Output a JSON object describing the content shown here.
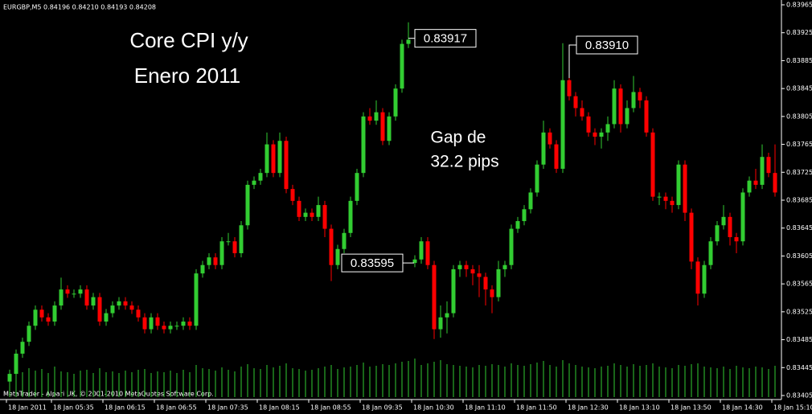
{
  "chart_data": {
    "type": "candlestick",
    "header": "EURGBP,M5  0.84196 0.84210 0.84193 0.84208",
    "footer": "MetaTrader - Alpari UK, © 2001-2010 MetaQuotes Software Corp.",
    "title": "Core CPI y/y",
    "subtitle": "Enero 2011",
    "annotations": [
      "Gap de",
      "32.2 pips"
    ],
    "price_labels": [
      {
        "value": 0.83917,
        "label": "0.83917"
      },
      {
        "value": 0.8391,
        "label": "0.83910"
      },
      {
        "value": 0.83595,
        "label": "0.83595"
      }
    ],
    "up_color": "#32cd32",
    "down_color": "#ff0000",
    "volume_color": "#32cd32",
    "ylim": [
      0.83405,
      0.83965
    ],
    "yticks": [
      0.83965,
      0.83925,
      0.83885,
      0.83845,
      0.83805,
      0.83765,
      0.83725,
      0.83685,
      0.83645,
      0.83605,
      0.83565,
      0.83525,
      0.83485,
      0.83445,
      0.83405
    ],
    "categories": [
      "18 Jan 2011",
      null,
      null,
      null,
      null,
      null,
      null,
      "18 Jan 05:35",
      null,
      null,
      null,
      null,
      null,
      null,
      null,
      "18 Jan 06:15",
      null,
      null,
      null,
      null,
      null,
      null,
      null,
      "18 Jan 06:55",
      null,
      null,
      null,
      null,
      null,
      null,
      null,
      "18 Jan 07:35",
      null,
      null,
      null,
      null,
      null,
      null,
      null,
      "18 Jan 08:15",
      null,
      null,
      null,
      null,
      null,
      null,
      null,
      "18 Jan 08:55",
      null,
      null,
      null,
      null,
      null,
      null,
      null,
      "18 Jan 09:35",
      null,
      null,
      null,
      null,
      null,
      null,
      null,
      "18 Jan 10:30",
      null,
      null,
      null,
      null,
      null,
      null,
      null,
      "18 Jan 11:10",
      null,
      null,
      null,
      null,
      null,
      null,
      null,
      "18 Jan 11:50",
      null,
      null,
      null,
      null,
      null,
      null,
      null,
      "18 Jan 12:30",
      null,
      null,
      null,
      null,
      null,
      null,
      null,
      "18 Jan 13:10",
      null,
      null,
      null,
      null,
      null,
      null,
      null,
      "18 Jan 13:50",
      null,
      null,
      null,
      null,
      null,
      null,
      null,
      "18 Jan 14:30",
      null,
      null,
      null,
      null,
      null,
      null,
      null,
      "18 Jan 15:10"
    ],
    "ohlc": [
      [
        0.83425,
        0.83442,
        0.83418,
        0.83436
      ],
      [
        0.83436,
        0.83471,
        0.8343,
        0.83465
      ],
      [
        0.83465,
        0.83488,
        0.83459,
        0.83482
      ],
      [
        0.83482,
        0.83511,
        0.83476,
        0.83505
      ],
      [
        0.83505,
        0.83534,
        0.83499,
        0.83528
      ],
      [
        0.83528,
        0.83534,
        0.83511,
        0.83517
      ],
      [
        0.83517,
        0.83523,
        0.83505,
        0.83511
      ],
      [
        0.83511,
        0.8354,
        0.83505,
        0.83534
      ],
      [
        0.83534,
        0.83574,
        0.83528,
        0.83557
      ],
      [
        0.83557,
        0.83563,
        0.83545,
        0.83551
      ],
      [
        0.83551,
        0.83557,
        0.83545,
        0.83551
      ],
      [
        0.83551,
        0.83563,
        0.83545,
        0.83557
      ],
      [
        0.83557,
        0.83563,
        0.83528,
        0.83534
      ],
      [
        0.83534,
        0.83552,
        0.83528,
        0.83546
      ],
      [
        0.83546,
        0.83552,
        0.83505,
        0.83511
      ],
      [
        0.83511,
        0.83529,
        0.83505,
        0.83523
      ],
      [
        0.83523,
        0.8354,
        0.83517,
        0.83534
      ],
      [
        0.83534,
        0.83546,
        0.83528,
        0.8354
      ],
      [
        0.8354,
        0.83546,
        0.83528,
        0.83534
      ],
      [
        0.83534,
        0.8354,
        0.83522,
        0.83528
      ],
      [
        0.83528,
        0.83534,
        0.83511,
        0.83517
      ],
      [
        0.83517,
        0.83523,
        0.83494,
        0.835
      ],
      [
        0.835,
        0.83523,
        0.83494,
        0.83517
      ],
      [
        0.83517,
        0.83523,
        0.83499,
        0.83505
      ],
      [
        0.83505,
        0.83511,
        0.83494,
        0.835
      ],
      [
        0.835,
        0.83511,
        0.83494,
        0.83505
      ],
      [
        0.83505,
        0.83511,
        0.83499,
        0.83505
      ],
      [
        0.83505,
        0.83517,
        0.83499,
        0.83511
      ],
      [
        0.83511,
        0.83517,
        0.83499,
        0.83505
      ],
      [
        0.83505,
        0.83586,
        0.83499,
        0.8358
      ],
      [
        0.8358,
        0.83598,
        0.83574,
        0.83592
      ],
      [
        0.83592,
        0.83609,
        0.83586,
        0.83603
      ],
      [
        0.83603,
        0.83609,
        0.83586,
        0.83592
      ],
      [
        0.83592,
        0.83632,
        0.83586,
        0.83626
      ],
      [
        0.83626,
        0.83638,
        0.8362,
        0.83626
      ],
      [
        0.83626,
        0.83632,
        0.83603,
        0.83609
      ],
      [
        0.83609,
        0.83655,
        0.83603,
        0.83649
      ],
      [
        0.83649,
        0.83713,
        0.83643,
        0.83707
      ],
      [
        0.83707,
        0.83719,
        0.83701,
        0.83713
      ],
      [
        0.83713,
        0.8373,
        0.83707,
        0.83724
      ],
      [
        0.83724,
        0.83782,
        0.83718,
        0.83765
      ],
      [
        0.83765,
        0.83771,
        0.83718,
        0.83724
      ],
      [
        0.83724,
        0.83782,
        0.83718,
        0.8377
      ],
      [
        0.8377,
        0.83776,
        0.83695,
        0.83701
      ],
      [
        0.83701,
        0.83707,
        0.83678,
        0.83684
      ],
      [
        0.83684,
        0.8369,
        0.83655,
        0.83661
      ],
      [
        0.83661,
        0.83673,
        0.83655,
        0.83667
      ],
      [
        0.83667,
        0.83673,
        0.83655,
        0.83661
      ],
      [
        0.83661,
        0.8369,
        0.83655,
        0.83678
      ],
      [
        0.83678,
        0.83684,
        0.83632,
        0.83644
      ],
      [
        0.83644,
        0.8365,
        0.83569,
        0.83592
      ],
      [
        0.83592,
        0.83621,
        0.83586,
        0.83615
      ],
      [
        0.83615,
        0.83644,
        0.83609,
        0.83638
      ],
      [
        0.83638,
        0.8369,
        0.83632,
        0.83684
      ],
      [
        0.83684,
        0.8373,
        0.83678,
        0.83724
      ],
      [
        0.83724,
        0.83811,
        0.83718,
        0.83805
      ],
      [
        0.83805,
        0.83817,
        0.83793,
        0.83799
      ],
      [
        0.83799,
        0.83828,
        0.83793,
        0.83811
      ],
      [
        0.83811,
        0.83817,
        0.83764,
        0.8377
      ],
      [
        0.8377,
        0.83811,
        0.83764,
        0.83805
      ],
      [
        0.83805,
        0.83851,
        0.83799,
        0.83845
      ],
      [
        0.83845,
        0.83915,
        0.83839,
        0.83909
      ],
      [
        0.83909,
        0.8394,
        0.83903,
        0.83915
      ],
      [
        0.83595,
        0.83606,
        0.83589,
        0.836
      ],
      [
        0.836,
        0.83632,
        0.83594,
        0.83626
      ],
      [
        0.83626,
        0.83632,
        0.83586,
        0.83592
      ],
      [
        0.83592,
        0.83598,
        0.83486,
        0.835
      ],
      [
        0.835,
        0.83534,
        0.83488,
        0.83517
      ],
      [
        0.83517,
        0.8354,
        0.83494,
        0.83523
      ],
      [
        0.83523,
        0.83592,
        0.83517,
        0.83586
      ],
      [
        0.83586,
        0.83598,
        0.83575,
        0.83592
      ],
      [
        0.83592,
        0.83598,
        0.83575,
        0.83586
      ],
      [
        0.83586,
        0.83592,
        0.83563,
        0.8358
      ],
      [
        0.8358,
        0.83592,
        0.83546,
        0.83575
      ],
      [
        0.83575,
        0.83581,
        0.83534,
        0.83557
      ],
      [
        0.83557,
        0.83563,
        0.83523,
        0.83546
      ],
      [
        0.83546,
        0.83598,
        0.8354,
        0.83586
      ],
      [
        0.83586,
        0.83598,
        0.83575,
        0.83592
      ],
      [
        0.83592,
        0.8365,
        0.83586,
        0.83644
      ],
      [
        0.83644,
        0.83661,
        0.83638,
        0.83655
      ],
      [
        0.83655,
        0.83678,
        0.83649,
        0.83672
      ],
      [
        0.83672,
        0.83702,
        0.83666,
        0.83696
      ],
      [
        0.83696,
        0.83742,
        0.8369,
        0.83736
      ],
      [
        0.83736,
        0.83799,
        0.8373,
        0.83782
      ],
      [
        0.83782,
        0.83788,
        0.83759,
        0.83765
      ],
      [
        0.83765,
        0.83771,
        0.83724,
        0.8373
      ],
      [
        0.8373,
        0.8391,
        0.83724,
        0.83857
      ],
      [
        0.83857,
        0.83863,
        0.83828,
        0.83834
      ],
      [
        0.83834,
        0.8384,
        0.83805,
        0.83817
      ],
      [
        0.83817,
        0.83828,
        0.83799,
        0.83805
      ],
      [
        0.83805,
        0.83811,
        0.83776,
        0.83782
      ],
      [
        0.83782,
        0.83788,
        0.83764,
        0.83776
      ],
      [
        0.83776,
        0.83788,
        0.83759,
        0.83782
      ],
      [
        0.83782,
        0.83805,
        0.8377,
        0.83794
      ],
      [
        0.83794,
        0.83857,
        0.83788,
        0.83845
      ],
      [
        0.83845,
        0.83851,
        0.83782,
        0.83794
      ],
      [
        0.83794,
        0.83828,
        0.83788,
        0.83817
      ],
      [
        0.83817,
        0.83863,
        0.83811,
        0.8384
      ],
      [
        0.8384,
        0.83846,
        0.83817,
        0.83828
      ],
      [
        0.83828,
        0.83834,
        0.83776,
        0.83782
      ],
      [
        0.83782,
        0.83788,
        0.83684,
        0.8369
      ],
      [
        0.8369,
        0.83696,
        0.83678,
        0.8369
      ],
      [
        0.8369,
        0.83696,
        0.83672,
        0.83684
      ],
      [
        0.83684,
        0.8369,
        0.83667,
        0.83678
      ],
      [
        0.83678,
        0.83742,
        0.83672,
        0.83736
      ],
      [
        0.83736,
        0.83742,
        0.83655,
        0.83667
      ],
      [
        0.83667,
        0.83673,
        0.83586,
        0.83597
      ],
      [
        0.83597,
        0.83603,
        0.83534,
        0.83551
      ],
      [
        0.83551,
        0.83598,
        0.83545,
        0.83592
      ],
      [
        0.83592,
        0.83632,
        0.83586,
        0.83626
      ],
      [
        0.83626,
        0.83655,
        0.8362,
        0.83649
      ],
      [
        0.83649,
        0.83678,
        0.83643,
        0.83661
      ],
      [
        0.83661,
        0.83667,
        0.8362,
        0.83632
      ],
      [
        0.83632,
        0.83638,
        0.83609,
        0.83626
      ],
      [
        0.83626,
        0.83702,
        0.8362,
        0.83696
      ],
      [
        0.83696,
        0.83719,
        0.8369,
        0.83713
      ],
      [
        0.83713,
        0.8373,
        0.83701,
        0.83707
      ],
      [
        0.83707,
        0.83765,
        0.83701,
        0.83747
      ],
      [
        0.83747,
        0.83753,
        0.83718,
        0.83724
      ],
      [
        0.83724,
        0.83765,
        0.8369,
        0.83696
      ]
    ],
    "volume": [
      30,
      34,
      31,
      36,
      33,
      35,
      30,
      38,
      32,
      31,
      29,
      33,
      34,
      30,
      36,
      31,
      32,
      30,
      33,
      31,
      34,
      35,
      30,
      32,
      31,
      33,
      30,
      34,
      31,
      40,
      36,
      35,
      33,
      37,
      34,
      32,
      38,
      41,
      36,
      35,
      40,
      37,
      39,
      42,
      36,
      35,
      33,
      34,
      36,
      38,
      40,
      35,
      37,
      38,
      40,
      43,
      38,
      39,
      41,
      40,
      42,
      44,
      45,
      48,
      40,
      42,
      44,
      46,
      41,
      40,
      39,
      38,
      37,
      40,
      39,
      41,
      40,
      38,
      42,
      40,
      39,
      41,
      43,
      45,
      40,
      38,
      46,
      42,
      40,
      38,
      37,
      36,
      38,
      39,
      42,
      40,
      38,
      41,
      39,
      40,
      42,
      38,
      37,
      36,
      40,
      39,
      41,
      42,
      38,
      37,
      36,
      38,
      35,
      39,
      37,
      36,
      38,
      37,
      35,
      39
    ]
  }
}
